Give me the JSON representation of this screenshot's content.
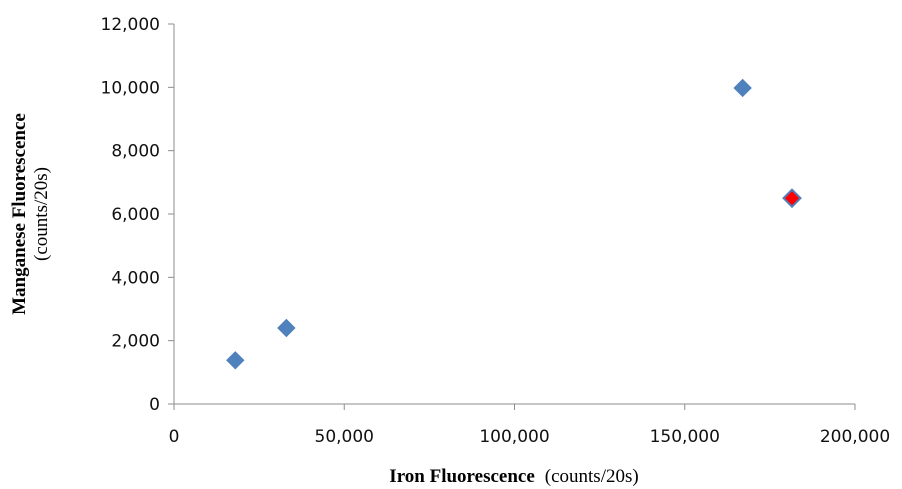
{
  "chart_data": {
    "type": "scatter",
    "xlabel": {
      "bold": "Iron Fluorescence",
      "unit": "(counts/20s)"
    },
    "ylabel": {
      "bold": "Manganese Fluorescence",
      "unit": "(counts/20s)"
    },
    "xlim": [
      0,
      200000
    ],
    "ylim": [
      0,
      12000
    ],
    "x_ticks": [
      0,
      50000,
      100000,
      150000,
      200000
    ],
    "x_tick_labels": [
      "0",
      "50,000",
      "100,000",
      "150,000",
      "200,000"
    ],
    "y_ticks": [
      0,
      2000,
      4000,
      6000,
      8000,
      10000,
      12000
    ],
    "y_tick_labels": [
      "0",
      "2,000",
      "4,000",
      "6,000",
      "8,000",
      "10,000",
      "12,000"
    ],
    "grid": false,
    "marker": "diamond",
    "series": [
      {
        "color": "#4f81bd",
        "points": [
          {
            "x": 18000,
            "y": 1380
          },
          {
            "x": 33000,
            "y": 2400
          },
          {
            "x": 167000,
            "y": 9980
          }
        ]
      },
      {
        "color": "#ff0000",
        "outline": "#4f81bd",
        "points": [
          {
            "x": 181500,
            "y": 6500
          }
        ]
      }
    ]
  }
}
